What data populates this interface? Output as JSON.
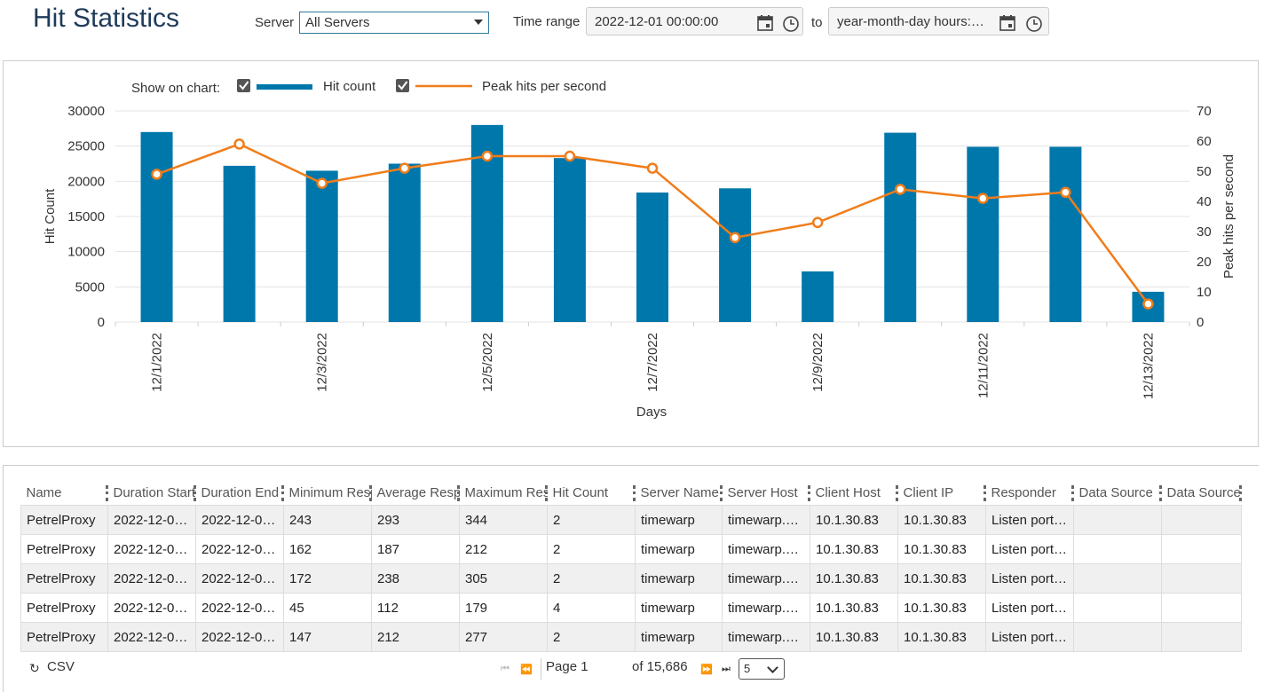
{
  "header": {
    "title": "Hit Statistics",
    "server_label": "Server",
    "server_value": "All Servers",
    "time_range_label": "Time range",
    "time_from": "2022-12-01 00:00:00",
    "to_label": "to",
    "time_to_placeholder": "year-month-day hours:minutes:seconds"
  },
  "legend": {
    "show_label": "Show on chart:",
    "hit_count_label": "Hit  count",
    "peak_label": "Peak hits per second"
  },
  "colors": {
    "bar": "#0077aa",
    "line": "#f07d1a",
    "accent": "#2e7d9c"
  },
  "chart_data": {
    "type": "bar",
    "categories": [
      "12/1/2022",
      "12/2/2022",
      "12/3/2022",
      "12/4/2022",
      "12/5/2022",
      "12/6/2022",
      "12/7/2022",
      "12/8/2022",
      "12/9/2022",
      "12/10/2022",
      "12/11/2022",
      "12/12/2022",
      "12/13/2022"
    ],
    "x_tick_labels": [
      "12/1/2022",
      "12/3/2022",
      "12/5/2022",
      "12/7/2022",
      "12/9/2022",
      "12/11/2022",
      "12/13/2022"
    ],
    "series": [
      {
        "name": "Hit count",
        "type": "bar",
        "axis": "left",
        "values": [
          27000,
          22200,
          21500,
          22500,
          28000,
          23300,
          18400,
          19000,
          7200,
          26900,
          24900,
          24900,
          4300
        ]
      },
      {
        "name": "Peak hits per second",
        "type": "line",
        "axis": "right",
        "values": [
          49,
          59,
          46,
          51,
          55,
          55,
          51,
          28,
          33,
          44,
          41,
          43,
          6
        ]
      }
    ],
    "xlabel": "Days",
    "ylabel": "Hit Count",
    "y2label": "Peak hits per second",
    "ylim": [
      0,
      30000
    ],
    "y2lim": [
      0,
      70
    ],
    "yticks": [
      0,
      5000,
      10000,
      15000,
      20000,
      25000,
      30000
    ],
    "y2ticks": [
      0,
      10,
      20,
      30,
      40,
      50,
      60,
      70
    ],
    "grid": true,
    "legend_position": "top-left"
  },
  "table": {
    "columns": [
      "Name",
      "Duration Start",
      "Duration End",
      "Minimum Response",
      "Average Response",
      "Maximum Response",
      "Hit Count",
      "Server Name",
      "Server Host",
      "Client Host",
      "Client IP",
      "Responder",
      "Data Source",
      "Data Source"
    ],
    "rows": [
      [
        "PetrelProxy",
        "2022-12-0…",
        "2022-12-0…",
        "243",
        "293",
        "344",
        "2",
        "timewarp",
        "timewarp.p…",
        "10.1.30.83",
        "10.1.30.83",
        "Listen port:…",
        "",
        ""
      ],
      [
        "PetrelProxy",
        "2022-12-0…",
        "2022-12-0…",
        "162",
        "187",
        "212",
        "2",
        "timewarp",
        "timewarp.p…",
        "10.1.30.83",
        "10.1.30.83",
        "Listen port:…",
        "",
        ""
      ],
      [
        "PetrelProxy",
        "2022-12-0…",
        "2022-12-0…",
        "172",
        "238",
        "305",
        "2",
        "timewarp",
        "timewarp.p…",
        "10.1.30.83",
        "10.1.30.83",
        "Listen port:…",
        "",
        ""
      ],
      [
        "PetrelProxy",
        "2022-12-0…",
        "2022-12-0…",
        "45",
        "112",
        "179",
        "4",
        "timewarp",
        "timewarp.p…",
        "10.1.30.83",
        "10.1.30.83",
        "Listen port:…",
        "",
        ""
      ],
      [
        "PetrelProxy",
        "2022-12-0…",
        "2022-12-0…",
        "147",
        "212",
        "277",
        "2",
        "timewarp",
        "timewarp.p…",
        "10.1.30.83",
        "10.1.30.83",
        "Listen port:…",
        "",
        ""
      ]
    ]
  },
  "footer": {
    "csv_label": "CSV",
    "page_label": "Page 1",
    "of_label": "of 15,686",
    "page_size": "5"
  }
}
